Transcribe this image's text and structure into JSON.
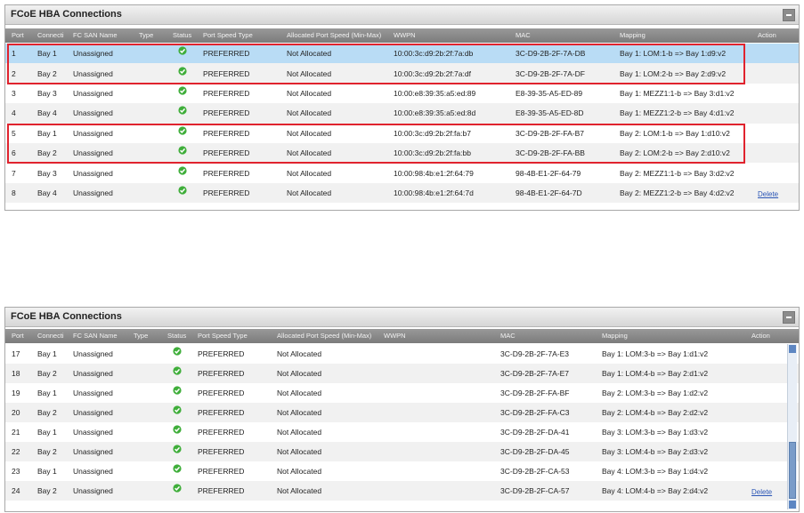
{
  "panels": [
    {
      "title": "FCoE HBA Connections",
      "columns": [
        "Port",
        "Connecti",
        "FC SAN Name",
        "Type",
        "Status",
        "Port Speed Type",
        "Allocated Port Speed (Min-Max)",
        "WWPN",
        "MAC",
        "Mapping",
        "Action"
      ],
      "rows": [
        [
          "1",
          "Bay 1",
          "Unassigned",
          null,
          null,
          "PREFERRED",
          "Not Allocated",
          "10:00:3c:d9:2b:2f:7a:db",
          "3C-D9-2B-2F-7A-DB",
          "Bay 1: LOM:1-b => Bay 1:d9:v2",
          null
        ],
        [
          "2",
          "Bay 2",
          "Unassigned",
          null,
          null,
          "PREFERRED",
          "Not Allocated",
          "10:00:3c:d9:2b:2f:7a:df",
          "3C-D9-2B-2F-7A-DF",
          "Bay 1: LOM:2-b => Bay 2:d9:v2",
          null
        ],
        [
          "3",
          "Bay 3",
          "Unassigned",
          null,
          null,
          "PREFERRED",
          "Not Allocated",
          "10:00:e8:39:35:a5:ed:89",
          "E8-39-35-A5-ED-89",
          "Bay 1: MEZZ1:1-b => Bay 3:d1:v2",
          null
        ],
        [
          "4",
          "Bay 4",
          "Unassigned",
          null,
          null,
          "PREFERRED",
          "Not Allocated",
          "10:00:e8:39:35:a5:ed:8d",
          "E8-39-35-A5-ED-8D",
          "Bay 1: MEZZ1:2-b => Bay 4:d1:v2",
          null
        ],
        [
          "5",
          "Bay 1",
          "Unassigned",
          null,
          null,
          "PREFERRED",
          "Not Allocated",
          "10:00:3c:d9:2b:2f:fa:b7",
          "3C-D9-2B-2F-FA-B7",
          "Bay 2: LOM:1-b => Bay 1:d10:v2",
          null
        ],
        [
          "6",
          "Bay 2",
          "Unassigned",
          null,
          null,
          "PREFERRED",
          "Not Allocated",
          "10:00:3c:d9:2b:2f:fa:bb",
          "3C-D9-2B-2F-FA-BB",
          "Bay 2: LOM:2-b => Bay 2:d10:v2",
          null
        ],
        [
          "7",
          "Bay 3",
          "Unassigned",
          null,
          null,
          "PREFERRED",
          "Not Allocated",
          "10:00:98:4b:e1:2f:64:79",
          "98-4B-E1-2F-64-79",
          "Bay 2: MEZZ1:1-b => Bay 3:d2:v2",
          null
        ],
        [
          "8",
          "Bay 4",
          "Unassigned",
          null,
          null,
          "PREFERRED",
          "Not Allocated",
          "10:00:98:4b:e1:2f:64:7d",
          "98-4B-E1-2F-64-7D",
          "Bay 2: MEZZ1:2-b => Bay 4:d2:v2",
          "Delete"
        ]
      ]
    },
    {
      "title": "FCoE HBA Connections",
      "columns": [
        "Port",
        "Connecti",
        "FC SAN Name",
        "Type",
        "Status",
        "Port Speed Type",
        "Allocated Port Speed (Min-Max)",
        "WWPN",
        "MAC",
        "Mapping",
        "Action"
      ],
      "rows": [
        [
          "17",
          "Bay 1",
          "Unassigned",
          null,
          null,
          "PREFERRED",
          "Not Allocated",
          null,
          "3C-D9-2B-2F-7A-E3",
          "Bay 1: LOM:3-b => Bay 1:d1:v2",
          null
        ],
        [
          "18",
          "Bay 2",
          "Unassigned",
          null,
          null,
          "PREFERRED",
          "Not Allocated",
          null,
          "3C-D9-2B-2F-7A-E7",
          "Bay 1: LOM:4-b => Bay 2:d1:v2",
          null
        ],
        [
          "19",
          "Bay 1",
          "Unassigned",
          null,
          null,
          "PREFERRED",
          "Not Allocated",
          null,
          "3C-D9-2B-2F-FA-BF",
          "Bay 2: LOM:3-b => Bay 1:d2:v2",
          null
        ],
        [
          "20",
          "Bay 2",
          "Unassigned",
          null,
          null,
          "PREFERRED",
          "Not Allocated",
          null,
          "3C-D9-2B-2F-FA-C3",
          "Bay 2: LOM:4-b => Bay 2:d2:v2",
          null
        ],
        [
          "21",
          "Bay 1",
          "Unassigned",
          null,
          null,
          "PREFERRED",
          "Not Allocated",
          null,
          "3C-D9-2B-2F-DA-41",
          "Bay 3: LOM:3-b => Bay 1:d3:v2",
          null
        ],
        [
          "22",
          "Bay 2",
          "Unassigned",
          null,
          null,
          "PREFERRED",
          "Not Allocated",
          null,
          "3C-D9-2B-2F-DA-45",
          "Bay 3: LOM:4-b => Bay 2:d3:v2",
          null
        ],
        [
          "23",
          "Bay 1",
          "Unassigned",
          null,
          null,
          "PREFERRED",
          "Not Allocated",
          null,
          "3C-D9-2B-2F-CA-53",
          "Bay 4: LOM:3-b => Bay 1:d4:v2",
          null
        ],
        [
          "24",
          "Bay 2",
          "Unassigned",
          null,
          null,
          "PREFERRED",
          "Not Allocated",
          null,
          "3C-D9-2B-2F-CA-57",
          "Bay 4: LOM:4-b => Bay 2:d4:v2",
          "Delete"
        ]
      ]
    }
  ]
}
